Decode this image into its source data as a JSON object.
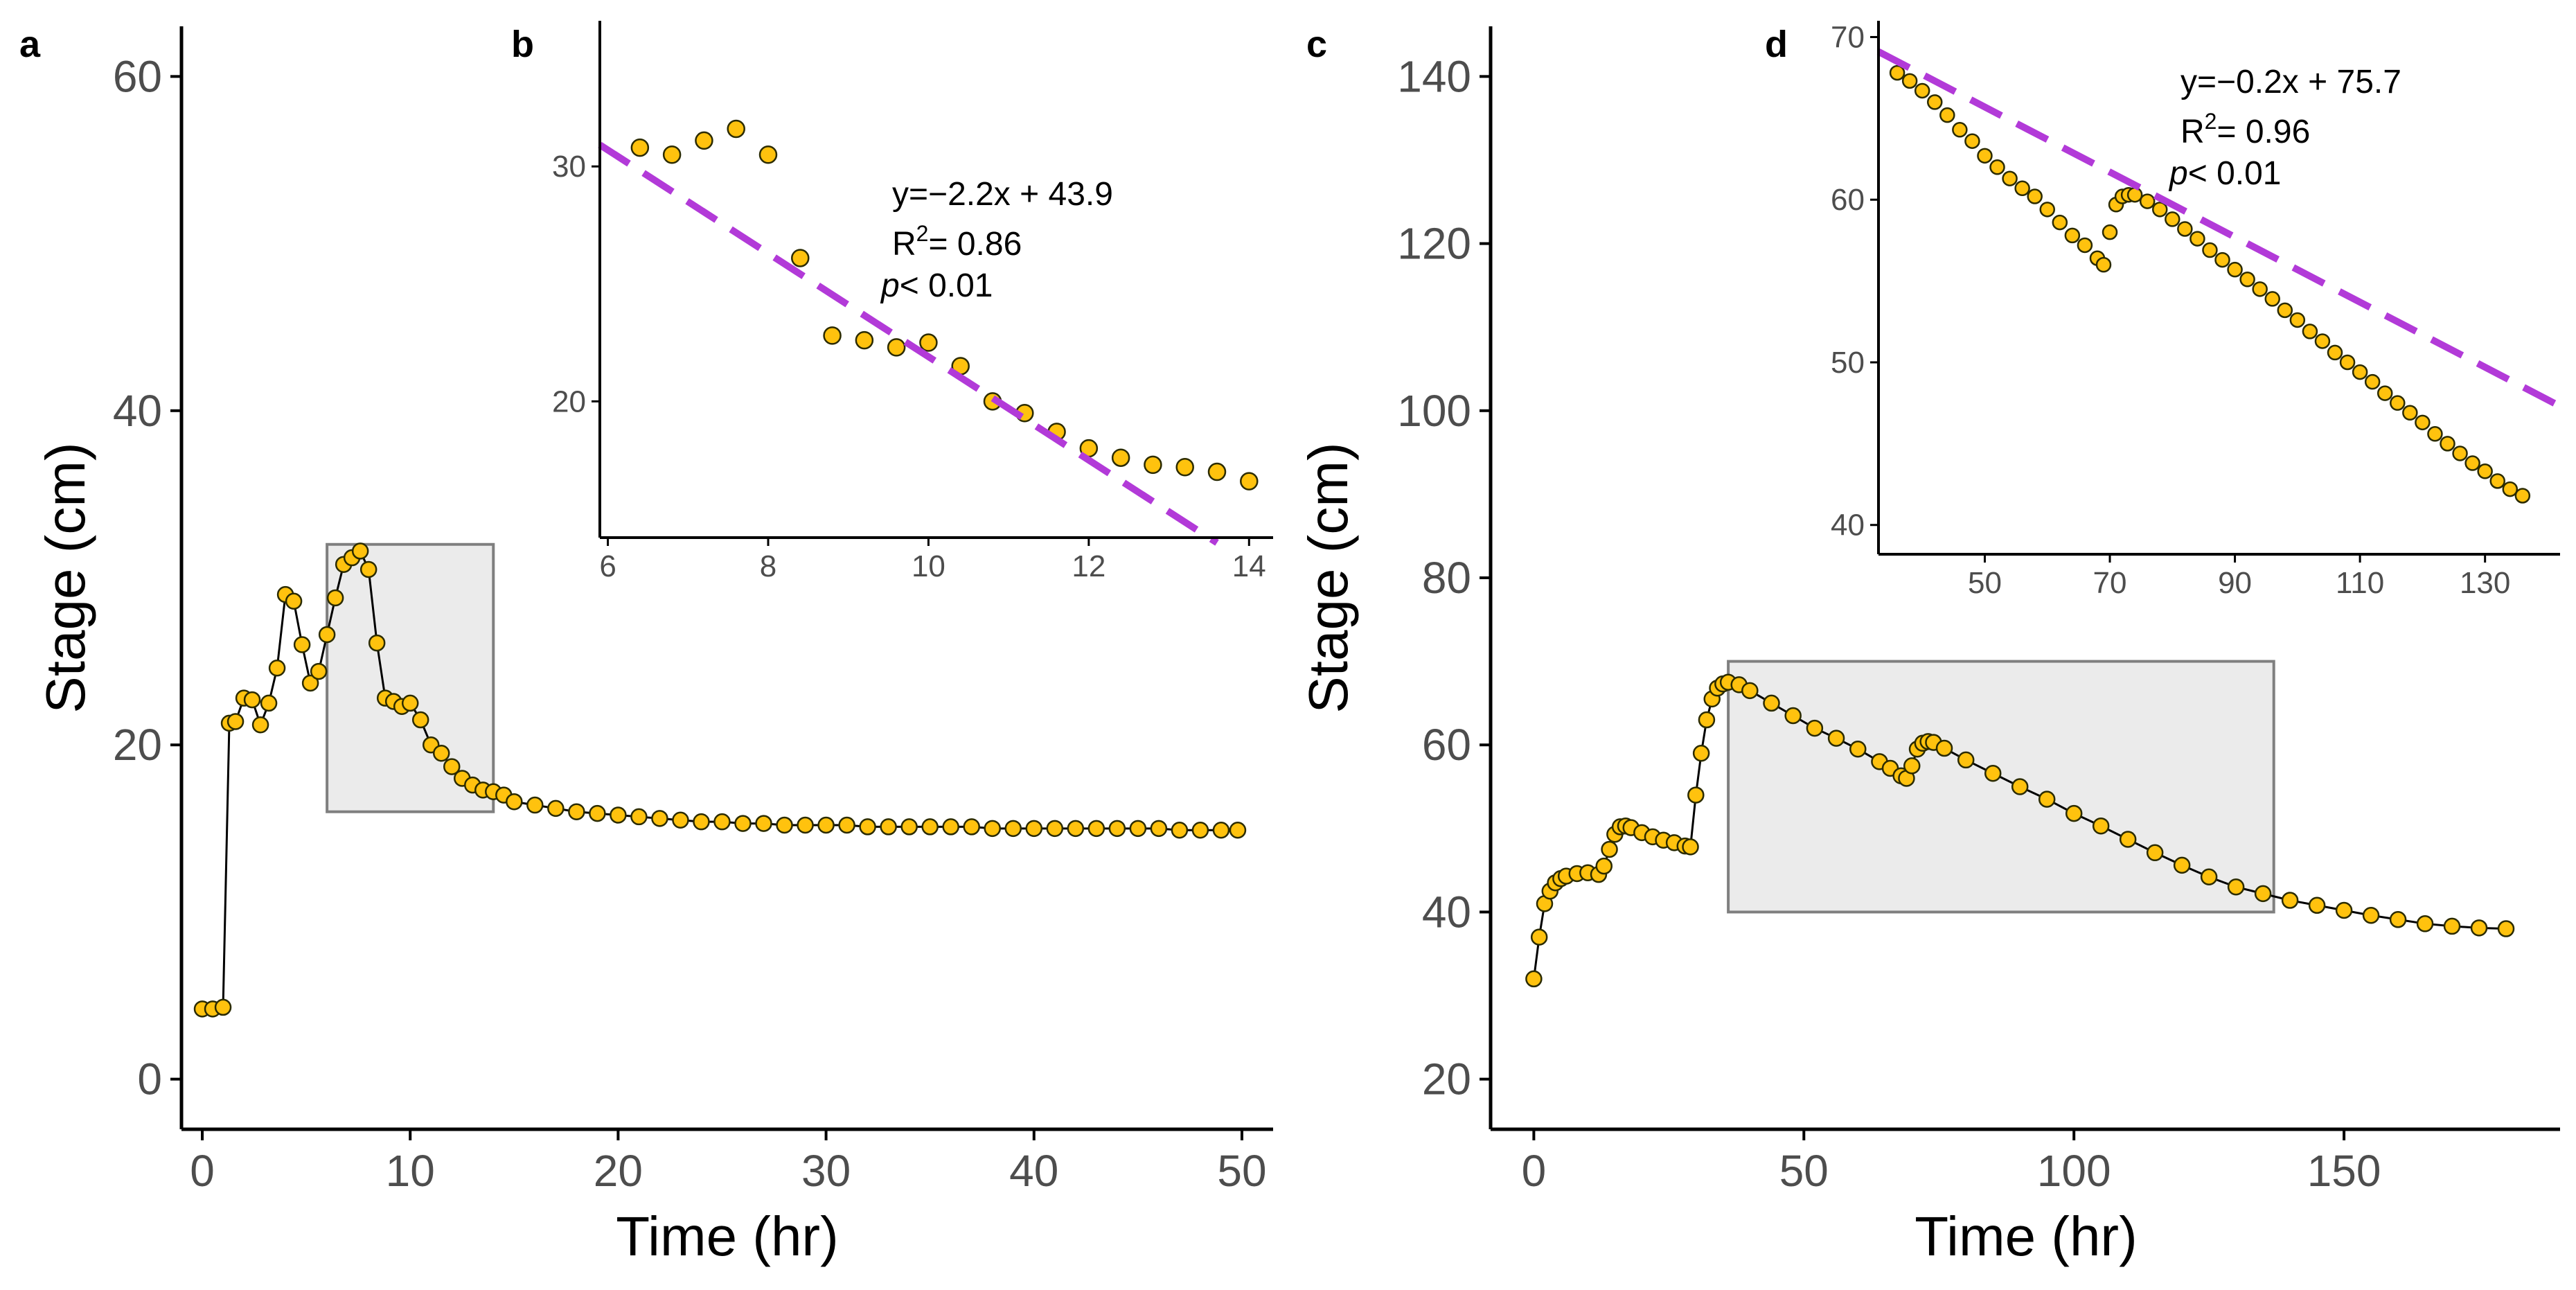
{
  "colors": {
    "point_fill": "#FFC20E",
    "point_stroke": "#2b2b00",
    "fit_line": "#B23AD8",
    "highlight_fill": "#EBEBEB",
    "highlight_stroke": "#7F7F7F",
    "axis": "#000000",
    "tick_text": "#4d4d4d"
  },
  "chart_data": [
    {
      "id": "a",
      "panel_label": "a",
      "type": "line",
      "xlabel": "Time (hr)",
      "ylabel": "Stage (cm)",
      "xlim": [
        -1,
        51.5
      ],
      "ylim": [
        -3,
        63
      ],
      "xticks": [
        0,
        10,
        20,
        30,
        40,
        50
      ],
      "yticks": [
        0,
        20,
        40,
        60
      ],
      "highlight": {
        "x": [
          6,
          14
        ],
        "y": [
          16,
          32
        ]
      },
      "series": [
        {
          "name": "Stage",
          "x": [
            0,
            0.5,
            1,
            1.3,
            1.6,
            2,
            2.4,
            2.8,
            3.2,
            3.6,
            4,
            4.4,
            4.8,
            5.2,
            5.6,
            6,
            6.4,
            6.8,
            7.2,
            7.6,
            8,
            8.4,
            8.8,
            9.2,
            9.6,
            10,
            10.5,
            11,
            11.5,
            12,
            12.5,
            13,
            13.5,
            14,
            14.5,
            15,
            16,
            17,
            18,
            19,
            20,
            21,
            22,
            23,
            24,
            25,
            26,
            27,
            28,
            29,
            30,
            31,
            32,
            33,
            34,
            35,
            36,
            37,
            38,
            39,
            40,
            41,
            42,
            43,
            44,
            45,
            46,
            47,
            48,
            49,
            49.8
          ],
          "y": [
            4.2,
            4.2,
            4.3,
            21.3,
            21.4,
            22.8,
            22.7,
            21.2,
            22.5,
            24.6,
            29.0,
            28.6,
            26.0,
            23.7,
            24.4,
            26.6,
            28.8,
            30.8,
            31.2,
            31.6,
            30.5,
            26.1,
            22.8,
            22.6,
            22.3,
            22.5,
            21.5,
            20.0,
            19.5,
            18.7,
            18.0,
            17.6,
            17.3,
            17.2,
            17.0,
            16.6,
            16.4,
            16.2,
            16.0,
            15.9,
            15.8,
            15.7,
            15.6,
            15.5,
            15.4,
            15.4,
            15.3,
            15.3,
            15.2,
            15.2,
            15.2,
            15.2,
            15.1,
            15.1,
            15.1,
            15.1,
            15.1,
            15.1,
            15.0,
            15.0,
            15.0,
            15.0,
            15.0,
            15.0,
            15.0,
            15.0,
            15.0,
            14.9,
            14.9,
            14.9,
            14.9
          ]
        }
      ]
    },
    {
      "id": "b",
      "panel_label": "b",
      "type": "scatter",
      "xlabel": "",
      "ylabel": "",
      "xlim": [
        5.9,
        14.3
      ],
      "ylim": [
        14.2,
        36.2
      ],
      "xticks": [
        6,
        8,
        10,
        12,
        14
      ],
      "yticks": [
        20,
        30
      ],
      "series": [
        {
          "name": "Stage",
          "x": [
            6.4,
            6.8,
            7.2,
            7.6,
            8,
            8.4,
            8.8,
            9.2,
            9.6,
            10,
            10.4,
            10.8,
            11.2,
            11.6,
            12,
            12.4,
            12.8,
            13.2,
            13.6,
            14
          ],
          "y": [
            30.8,
            30.5,
            31.1,
            31.6,
            30.5,
            26.1,
            22.8,
            22.6,
            22.3,
            22.5,
            21.5,
            20.0,
            19.5,
            18.7,
            18.0,
            17.6,
            17.3,
            17.2,
            17.0,
            16.6
          ]
        }
      ],
      "fit": {
        "slope": -2.2,
        "intercept": 43.9,
        "x_range": [
          5.9,
          13.6
        ]
      },
      "annotation": {
        "equation": "y=−2.2x + 43.9",
        "r2_label": "R",
        "r2_sup": "2",
        "r2_value": "= 0.86",
        "p_label": "p",
        "p_value": "< 0.01"
      }
    },
    {
      "id": "c",
      "panel_label": "c",
      "type": "line",
      "xlabel": "Time (hr)",
      "ylabel": "Stage (cm)",
      "xlim": [
        -8,
        190
      ],
      "ylim": [
        14,
        146
      ],
      "xticks": [
        0,
        50,
        100,
        150
      ],
      "yticks": [
        20,
        40,
        60,
        80,
        100,
        120,
        140
      ],
      "highlight": {
        "x": [
          36,
          137
        ],
        "y": [
          40,
          70
        ]
      },
      "series": [
        {
          "name": "Stage",
          "x": [
            0,
            1,
            2,
            3,
            4,
            5,
            6,
            8,
            10,
            12,
            13,
            14,
            15,
            16,
            17,
            18,
            20,
            22,
            24,
            26,
            28,
            29,
            30,
            31,
            32,
            33,
            34,
            35,
            36,
            38,
            40,
            44,
            48,
            52,
            56,
            60,
            64,
            66,
            68,
            69,
            70,
            71,
            72,
            73,
            74,
            76,
            80,
            85,
            90,
            95,
            100,
            105,
            110,
            115,
            120,
            125,
            130,
            135,
            140,
            145,
            150,
            155,
            160,
            165,
            170,
            175,
            180
          ],
          "y": [
            32,
            37,
            41,
            42.5,
            43.5,
            44,
            44.3,
            44.6,
            44.7,
            44.5,
            45.5,
            47.5,
            49.3,
            50.2,
            50.3,
            50.1,
            49.5,
            49,
            48.6,
            48.3,
            47.9,
            47.8,
            54,
            59,
            63,
            65.5,
            66.8,
            67.3,
            67.5,
            67.2,
            66.5,
            65,
            63.5,
            62,
            60.8,
            59.5,
            58,
            57.2,
            56.3,
            56,
            57.5,
            59.5,
            60.2,
            60.4,
            60.3,
            59.6,
            58.2,
            56.6,
            55,
            53.5,
            51.8,
            50.3,
            48.7,
            47.1,
            45.6,
            44.2,
            43,
            42.2,
            41.4,
            40.8,
            40.2,
            39.6,
            39.1,
            38.6,
            38.3,
            38.1,
            38
          ]
        }
      ]
    },
    {
      "id": "d",
      "panel_label": "d",
      "type": "scatter",
      "xlabel": "",
      "ylabel": "",
      "xlim": [
        33,
        142
      ],
      "ylim": [
        38.2,
        71
      ],
      "xticks": [
        50,
        70,
        90,
        110,
        130
      ],
      "yticks": [
        40,
        50,
        60,
        70
      ],
      "series": [
        {
          "name": "Stage",
          "x": [
            36,
            38,
            40,
            42,
            44,
            46,
            48,
            50,
            52,
            54,
            56,
            58,
            60,
            62,
            64,
            66,
            68,
            69,
            70,
            71,
            72,
            73,
            74,
            76,
            78,
            80,
            82,
            84,
            86,
            88,
            90,
            92,
            94,
            96,
            98,
            100,
            102,
            104,
            106,
            108,
            110,
            112,
            114,
            116,
            118,
            120,
            122,
            124,
            126,
            128,
            130,
            132,
            134,
            136
          ],
          "y": [
            67.8,
            67.3,
            66.7,
            66,
            65.2,
            64.3,
            63.6,
            62.7,
            62,
            61.3,
            60.7,
            60.2,
            59.4,
            58.6,
            57.8,
            57.2,
            56.4,
            56,
            58,
            59.7,
            60.2,
            60.3,
            60.3,
            59.9,
            59.4,
            58.8,
            58.2,
            57.6,
            56.9,
            56.3,
            55.7,
            55.1,
            54.5,
            53.9,
            53.2,
            52.6,
            51.9,
            51.3,
            50.6,
            50,
            49.4,
            48.8,
            48.1,
            47.5,
            46.9,
            46.3,
            45.6,
            45,
            44.4,
            43.8,
            43.3,
            42.7,
            42.2,
            41.8
          ]
        }
      ],
      "fit": {
        "slope": -0.2,
        "intercept": 75.7,
        "x_range": [
          33,
          142
        ]
      },
      "annotation": {
        "equation": "y=−0.2x + 75.7",
        "r2_label": "R",
        "r2_sup": "2",
        "r2_value": "= 0.96",
        "p_label": "p",
        "p_value": "< 0.01"
      }
    }
  ]
}
